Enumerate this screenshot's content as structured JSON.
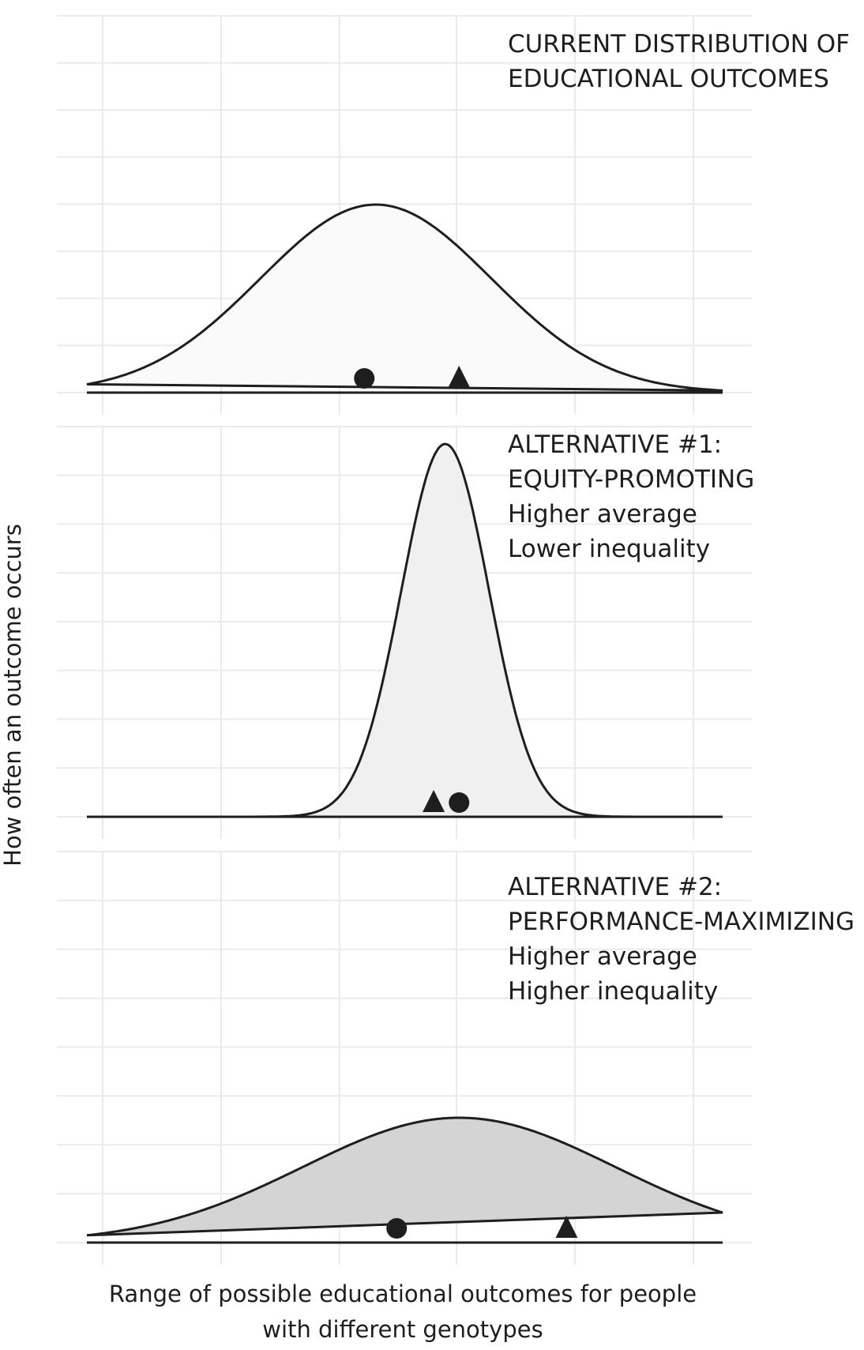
{
  "chart_data": {
    "type": "area",
    "ylabel": "How often an outcome occurs",
    "xlabel_lines": [
      "Range of possible educational outcomes for people",
      "with different genotypes"
    ],
    "grid": true,
    "panels": [
      {
        "title_lines": [
          "CURRENT DISTRIBUTION OF",
          "EDUCATIONAL OUTCOMES"
        ],
        "fill": "#fafafa",
        "distribution": {
          "mean": 0.0,
          "sd": 1.0,
          "peak": 1.0
        },
        "markers": [
          {
            "shape": "circle",
            "x": -0.1
          },
          {
            "shape": "triangle",
            "x": 0.72
          }
        ]
      },
      {
        "title_lines": [
          "ALTERNATIVE #1:",
          "EQUITY-PROMOTING",
          "Higher average",
          "Lower inequality"
        ],
        "fill": "#f0f0f0",
        "distribution": {
          "mean": 0.6,
          "sd": 0.38,
          "peak": 1.0
        },
        "markers": [
          {
            "shape": "triangle",
            "x": 0.5
          },
          {
            "shape": "circle",
            "x": 0.72
          }
        ]
      },
      {
        "title_lines": [
          "ALTERNATIVE #2:",
          "PERFORMANCE-MAXIMIZING",
          "Higher average",
          "Higher inequality"
        ],
        "fill": "#d4d4d4",
        "distribution": {
          "mean": 0.72,
          "sd": 1.35,
          "peak": 1.0
        },
        "markers": [
          {
            "shape": "circle",
            "x": 0.18
          },
          {
            "shape": "triangle",
            "x": 1.65
          }
        ]
      }
    ],
    "xlim": [
      -2.5,
      3.0
    ]
  }
}
